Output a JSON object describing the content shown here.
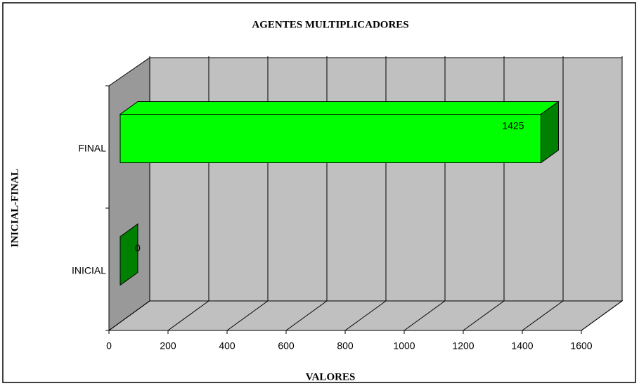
{
  "chart_data": {
    "type": "bar3d_horizontal",
    "title": "AGENTES MULTIPLICADORES",
    "x_label": "VALORES",
    "y_label": "INICIAL-FINAL",
    "categories": [
      "INICIAL",
      "FINAL"
    ],
    "values": [
      0,
      1425
    ],
    "color": "#00ff00",
    "side_color": "#008000",
    "xlim": [
      0,
      1600
    ],
    "xticks": [
      0,
      200,
      400,
      600,
      800,
      1000,
      1200,
      1400,
      1600
    ],
    "grid": true
  }
}
